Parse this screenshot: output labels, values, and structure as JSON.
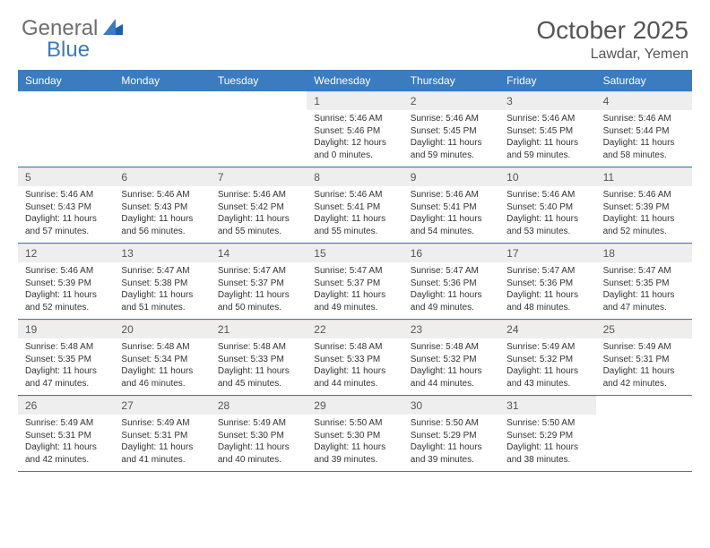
{
  "logo": {
    "text1": "General",
    "text2": "Blue"
  },
  "title": "October 2025",
  "location": "Lawdar, Yemen",
  "styling": {
    "header_bg": "#3b7bbf",
    "header_text": "#ffffff",
    "daynum_bg": "#eeeeee",
    "daynum_text": "#555555",
    "body_text": "#333333",
    "week_border": "#3b7bbf",
    "page_bg": "#ffffff",
    "logo_general_color": "#6e6e6e",
    "logo_blue_color": "#3b7bbf",
    "title_fontsize": 28,
    "location_fontsize": 16,
    "weekday_fontsize": 12,
    "daynum_fontsize": 12,
    "body_fontsize": 10
  },
  "weekdays": [
    "Sunday",
    "Monday",
    "Tuesday",
    "Wednesday",
    "Thursday",
    "Friday",
    "Saturday"
  ],
  "weeks": [
    [
      null,
      null,
      null,
      {
        "n": "1",
        "sr": "Sunrise: 5:46 AM",
        "ss": "Sunset: 5:46 PM",
        "dl": "Daylight: 12 hours and 0 minutes."
      },
      {
        "n": "2",
        "sr": "Sunrise: 5:46 AM",
        "ss": "Sunset: 5:45 PM",
        "dl": "Daylight: 11 hours and 59 minutes."
      },
      {
        "n": "3",
        "sr": "Sunrise: 5:46 AM",
        "ss": "Sunset: 5:45 PM",
        "dl": "Daylight: 11 hours and 59 minutes."
      },
      {
        "n": "4",
        "sr": "Sunrise: 5:46 AM",
        "ss": "Sunset: 5:44 PM",
        "dl": "Daylight: 11 hours and 58 minutes."
      }
    ],
    [
      {
        "n": "5",
        "sr": "Sunrise: 5:46 AM",
        "ss": "Sunset: 5:43 PM",
        "dl": "Daylight: 11 hours and 57 minutes."
      },
      {
        "n": "6",
        "sr": "Sunrise: 5:46 AM",
        "ss": "Sunset: 5:43 PM",
        "dl": "Daylight: 11 hours and 56 minutes."
      },
      {
        "n": "7",
        "sr": "Sunrise: 5:46 AM",
        "ss": "Sunset: 5:42 PM",
        "dl": "Daylight: 11 hours and 55 minutes."
      },
      {
        "n": "8",
        "sr": "Sunrise: 5:46 AM",
        "ss": "Sunset: 5:41 PM",
        "dl": "Daylight: 11 hours and 55 minutes."
      },
      {
        "n": "9",
        "sr": "Sunrise: 5:46 AM",
        "ss": "Sunset: 5:41 PM",
        "dl": "Daylight: 11 hours and 54 minutes."
      },
      {
        "n": "10",
        "sr": "Sunrise: 5:46 AM",
        "ss": "Sunset: 5:40 PM",
        "dl": "Daylight: 11 hours and 53 minutes."
      },
      {
        "n": "11",
        "sr": "Sunrise: 5:46 AM",
        "ss": "Sunset: 5:39 PM",
        "dl": "Daylight: 11 hours and 52 minutes."
      }
    ],
    [
      {
        "n": "12",
        "sr": "Sunrise: 5:46 AM",
        "ss": "Sunset: 5:39 PM",
        "dl": "Daylight: 11 hours and 52 minutes."
      },
      {
        "n": "13",
        "sr": "Sunrise: 5:47 AM",
        "ss": "Sunset: 5:38 PM",
        "dl": "Daylight: 11 hours and 51 minutes."
      },
      {
        "n": "14",
        "sr": "Sunrise: 5:47 AM",
        "ss": "Sunset: 5:37 PM",
        "dl": "Daylight: 11 hours and 50 minutes."
      },
      {
        "n": "15",
        "sr": "Sunrise: 5:47 AM",
        "ss": "Sunset: 5:37 PM",
        "dl": "Daylight: 11 hours and 49 minutes."
      },
      {
        "n": "16",
        "sr": "Sunrise: 5:47 AM",
        "ss": "Sunset: 5:36 PM",
        "dl": "Daylight: 11 hours and 49 minutes."
      },
      {
        "n": "17",
        "sr": "Sunrise: 5:47 AM",
        "ss": "Sunset: 5:36 PM",
        "dl": "Daylight: 11 hours and 48 minutes."
      },
      {
        "n": "18",
        "sr": "Sunrise: 5:47 AM",
        "ss": "Sunset: 5:35 PM",
        "dl": "Daylight: 11 hours and 47 minutes."
      }
    ],
    [
      {
        "n": "19",
        "sr": "Sunrise: 5:48 AM",
        "ss": "Sunset: 5:35 PM",
        "dl": "Daylight: 11 hours and 47 minutes."
      },
      {
        "n": "20",
        "sr": "Sunrise: 5:48 AM",
        "ss": "Sunset: 5:34 PM",
        "dl": "Daylight: 11 hours and 46 minutes."
      },
      {
        "n": "21",
        "sr": "Sunrise: 5:48 AM",
        "ss": "Sunset: 5:33 PM",
        "dl": "Daylight: 11 hours and 45 minutes."
      },
      {
        "n": "22",
        "sr": "Sunrise: 5:48 AM",
        "ss": "Sunset: 5:33 PM",
        "dl": "Daylight: 11 hours and 44 minutes."
      },
      {
        "n": "23",
        "sr": "Sunrise: 5:48 AM",
        "ss": "Sunset: 5:32 PM",
        "dl": "Daylight: 11 hours and 44 minutes."
      },
      {
        "n": "24",
        "sr": "Sunrise: 5:49 AM",
        "ss": "Sunset: 5:32 PM",
        "dl": "Daylight: 11 hours and 43 minutes."
      },
      {
        "n": "25",
        "sr": "Sunrise: 5:49 AM",
        "ss": "Sunset: 5:31 PM",
        "dl": "Daylight: 11 hours and 42 minutes."
      }
    ],
    [
      {
        "n": "26",
        "sr": "Sunrise: 5:49 AM",
        "ss": "Sunset: 5:31 PM",
        "dl": "Daylight: 11 hours and 42 minutes."
      },
      {
        "n": "27",
        "sr": "Sunrise: 5:49 AM",
        "ss": "Sunset: 5:31 PM",
        "dl": "Daylight: 11 hours and 41 minutes."
      },
      {
        "n": "28",
        "sr": "Sunrise: 5:49 AM",
        "ss": "Sunset: 5:30 PM",
        "dl": "Daylight: 11 hours and 40 minutes."
      },
      {
        "n": "29",
        "sr": "Sunrise: 5:50 AM",
        "ss": "Sunset: 5:30 PM",
        "dl": "Daylight: 11 hours and 39 minutes."
      },
      {
        "n": "30",
        "sr": "Sunrise: 5:50 AM",
        "ss": "Sunset: 5:29 PM",
        "dl": "Daylight: 11 hours and 39 minutes."
      },
      {
        "n": "31",
        "sr": "Sunrise: 5:50 AM",
        "ss": "Sunset: 5:29 PM",
        "dl": "Daylight: 11 hours and 38 minutes."
      },
      null
    ]
  ]
}
